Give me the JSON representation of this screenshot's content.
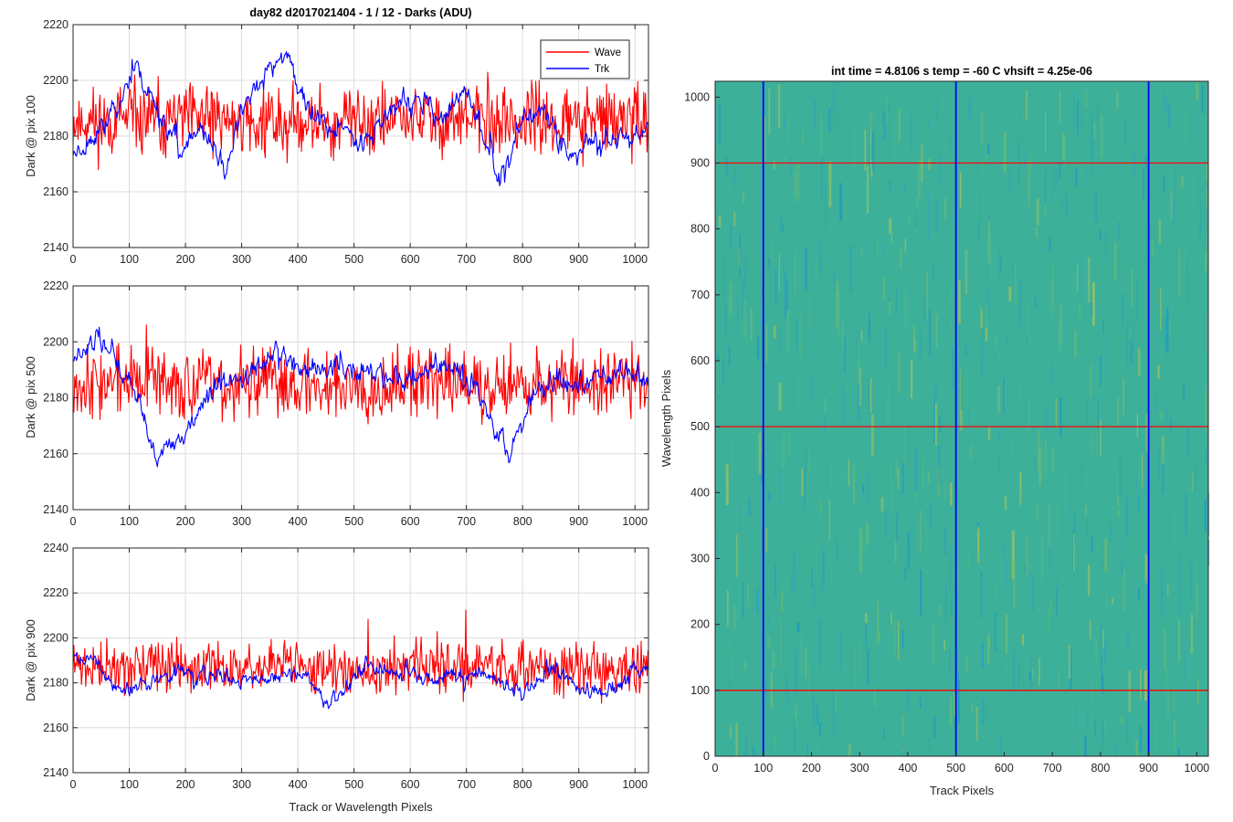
{
  "chart_data": [
    {
      "type": "line",
      "title": "day82 d2017021404 - 1 / 12 - Darks (ADU)",
      "xlabel": "",
      "ylabel": "Dark @ pix 100",
      "xlim": [
        0,
        1024
      ],
      "ylim": [
        2140,
        2220
      ],
      "xticks": [
        0,
        100,
        200,
        300,
        400,
        500,
        600,
        700,
        800,
        900,
        1000
      ],
      "yticks": [
        2140,
        2160,
        2180,
        2200,
        2220
      ],
      "grid": true,
      "legend": {
        "placement": "top-right",
        "entries": [
          "Wave",
          "Trk"
        ]
      },
      "series": [
        {
          "name": "Wave",
          "color": "#ff0000",
          "mean": 2186,
          "noise": 9,
          "seed": 11,
          "anchors": [
            [
              0,
              2185
            ],
            [
              200,
              2186
            ],
            [
              400,
              2185
            ],
            [
              600,
              2186
            ],
            [
              800,
              2185
            ],
            [
              1024,
              2186
            ]
          ]
        },
        {
          "name": "Trk",
          "color": "#0000ff",
          "mean": 2186,
          "noise": 4,
          "seed": 23,
          "anchors": [
            [
              0,
              2174
            ],
            [
              60,
              2184
            ],
            [
              110,
              2205
            ],
            [
              150,
              2190
            ],
            [
              190,
              2175
            ],
            [
              230,
              2182
            ],
            [
              270,
              2168
            ],
            [
              300,
              2190
            ],
            [
              340,
              2200
            ],
            [
              380,
              2210
            ],
            [
              420,
              2188
            ],
            [
              460,
              2183
            ],
            [
              500,
              2180
            ],
            [
              540,
              2183
            ],
            [
              580,
              2192
            ],
            [
              620,
              2192
            ],
            [
              660,
              2185
            ],
            [
              700,
              2198
            ],
            [
              735,
              2175
            ],
            [
              760,
              2165
            ],
            [
              800,
              2185
            ],
            [
              840,
              2190
            ],
            [
              880,
              2172
            ],
            [
              940,
              2180
            ],
            [
              1024,
              2182
            ]
          ]
        }
      ]
    },
    {
      "type": "line",
      "title": "",
      "xlabel": "",
      "ylabel": "Dark @ pix 500",
      "xlim": [
        0,
        1024
      ],
      "ylim": [
        2140,
        2220
      ],
      "xticks": [
        0,
        100,
        200,
        300,
        400,
        500,
        600,
        700,
        800,
        900,
        1000
      ],
      "yticks": [
        2140,
        2160,
        2180,
        2200,
        2220
      ],
      "grid": true,
      "series": [
        {
          "name": "Wave",
          "color": "#ff0000",
          "mean": 2185,
          "noise": 9,
          "seed": 37,
          "anchors": [
            [
              0,
              2186
            ],
            [
              300,
              2185
            ],
            [
              600,
              2185
            ],
            [
              1024,
              2186
            ]
          ]
        },
        {
          "name": "Trk",
          "color": "#0000ff",
          "mean": 2186,
          "noise": 4,
          "seed": 51,
          "anchors": [
            [
              0,
              2192
            ],
            [
              40,
              2203
            ],
            [
              80,
              2192
            ],
            [
              120,
              2178
            ],
            [
              150,
              2158
            ],
            [
              190,
              2165
            ],
            [
              230,
              2178
            ],
            [
              270,
              2185
            ],
            [
              300,
              2185
            ],
            [
              360,
              2197
            ],
            [
              400,
              2192
            ],
            [
              440,
              2190
            ],
            [
              480,
              2190
            ],
            [
              520,
              2190
            ],
            [
              560,
              2187
            ],
            [
              600,
              2188
            ],
            [
              640,
              2190
            ],
            [
              680,
              2190
            ],
            [
              720,
              2182
            ],
            [
              750,
              2170
            ],
            [
              780,
              2158
            ],
            [
              810,
              2178
            ],
            [
              850,
              2185
            ],
            [
              900,
              2185
            ],
            [
              950,
              2190
            ],
            [
              1024,
              2185
            ]
          ]
        }
      ]
    },
    {
      "type": "line",
      "title": "",
      "xlabel": "Track or Wavelength Pixels",
      "ylabel": "Dark @ pix 900",
      "xlim": [
        0,
        1024
      ],
      "ylim": [
        2140,
        2240
      ],
      "xticks": [
        0,
        100,
        200,
        300,
        400,
        500,
        600,
        700,
        800,
        900,
        1000
      ],
      "yticks": [
        2140,
        2160,
        2180,
        2200,
        2220,
        2240
      ],
      "grid": true,
      "series": [
        {
          "name": "Wave",
          "color": "#ff0000",
          "mean": 2186,
          "noise": 8,
          "seed": 71,
          "anchors": [
            [
              0,
              2187
            ],
            [
              400,
              2187
            ],
            [
              800,
              2186
            ],
            [
              1024,
              2186
            ]
          ]
        },
        {
          "name": "Trk",
          "color": "#0000ff",
          "mean": 2185,
          "noise": 3.5,
          "seed": 89,
          "anchors": [
            [
              0,
              2192
            ],
            [
              40,
              2190
            ],
            [
              80,
              2175
            ],
            [
              120,
              2180
            ],
            [
              200,
              2185
            ],
            [
              300,
              2180
            ],
            [
              400,
              2185
            ],
            [
              460,
              2170
            ],
            [
              500,
              2185
            ],
            [
              560,
              2186
            ],
            [
              640,
              2180
            ],
            [
              700,
              2185
            ],
            [
              760,
              2180
            ],
            [
              800,
              2175
            ],
            [
              850,
              2186
            ],
            [
              900,
              2177
            ],
            [
              950,
              2175
            ],
            [
              1024,
              2190
            ]
          ]
        }
      ]
    },
    {
      "type": "heatmap",
      "title": "int time = 4.8106 s    temp = -60 C    vhsift = 4.25e-06",
      "xlabel": "Track Pixels",
      "ylabel": "Wavelength Pixels",
      "xlim": [
        0,
        1024
      ],
      "ylim": [
        0,
        1024
      ],
      "xticks": [
        0,
        100,
        200,
        300,
        400,
        500,
        600,
        700,
        800,
        900,
        1000
      ],
      "yticks": [
        0,
        100,
        200,
        300,
        400,
        500,
        600,
        700,
        800,
        900,
        1000
      ],
      "colormap": "parula",
      "base_color": "#3db09a",
      "vertical_lines": {
        "color": "#0000ff",
        "x": [
          100,
          500,
          900
        ]
      },
      "horizontal_lines": {
        "color": "#ff0000",
        "y": [
          100,
          500,
          900
        ]
      }
    }
  ]
}
